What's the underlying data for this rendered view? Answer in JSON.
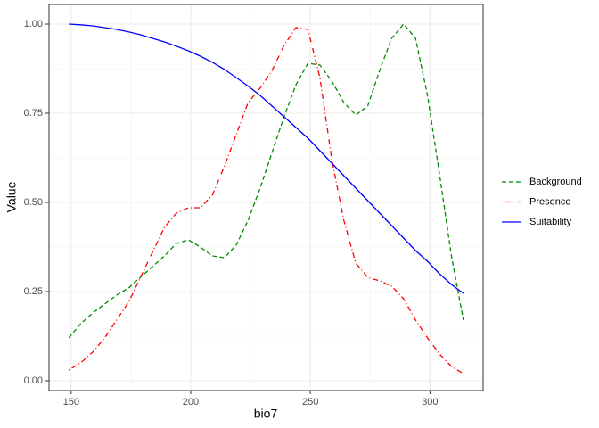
{
  "chart_data": {
    "type": "line",
    "x_label": "bio7",
    "y_label": "Value",
    "x": [
      149,
      154,
      159,
      164,
      169,
      174,
      179,
      184,
      189,
      194,
      199,
      204,
      209,
      214,
      219,
      224,
      229,
      234,
      239,
      244,
      249,
      254,
      259,
      264,
      269,
      274,
      279,
      284,
      289,
      294,
      299,
      304,
      309,
      314
    ],
    "series": [
      {
        "name": "Background",
        "color": "#008b00",
        "linestyle": "dashed",
        "values": [
          0.12,
          0.16,
          0.19,
          0.215,
          0.24,
          0.26,
          0.29,
          0.32,
          0.35,
          0.385,
          0.395,
          0.375,
          0.35,
          0.345,
          0.38,
          0.45,
          0.54,
          0.64,
          0.74,
          0.83,
          0.89,
          0.885,
          0.84,
          0.78,
          0.745,
          0.77,
          0.87,
          0.96,
          1.0,
          0.96,
          0.8,
          0.58,
          0.35,
          0.17
        ]
      },
      {
        "name": "Presence",
        "color": "#ff0000",
        "linestyle": "dotdash",
        "values": [
          0.03,
          0.05,
          0.08,
          0.12,
          0.17,
          0.22,
          0.29,
          0.36,
          0.43,
          0.47,
          0.485,
          0.485,
          0.52,
          0.6,
          0.69,
          0.78,
          0.82,
          0.87,
          0.94,
          0.99,
          0.985,
          0.85,
          0.62,
          0.45,
          0.33,
          0.29,
          0.28,
          0.265,
          0.23,
          0.17,
          0.12,
          0.075,
          0.04,
          0.02
        ]
      },
      {
        "name": "Suitability",
        "color": "#0000ff",
        "linestyle": "solid",
        "values": [
          1.0,
          0.998,
          0.995,
          0.99,
          0.985,
          0.978,
          0.97,
          0.96,
          0.95,
          0.938,
          0.925,
          0.91,
          0.893,
          0.873,
          0.85,
          0.826,
          0.8,
          0.77,
          0.74,
          0.71,
          0.68,
          0.645,
          0.61,
          0.575,
          0.54,
          0.505,
          0.47,
          0.435,
          0.4,
          0.365,
          0.335,
          0.3,
          0.27,
          0.245
        ]
      }
    ],
    "xlim": [
      140.75,
      322.25
    ],
    "xticks": [
      150,
      200,
      250,
      300
    ],
    "ylim": [
      -0.0275,
      1.055
    ],
    "yticks": [
      {
        "value": 0,
        "label": "0.00"
      },
      {
        "value": 0.25,
        "label": "0.25"
      },
      {
        "value": 0.5,
        "label": "0.50"
      },
      {
        "value": 0.75,
        "label": "0.75"
      },
      {
        "value": 1,
        "label": "1.00"
      }
    ],
    "grid": true,
    "minor_grid": true,
    "legend": "right"
  }
}
